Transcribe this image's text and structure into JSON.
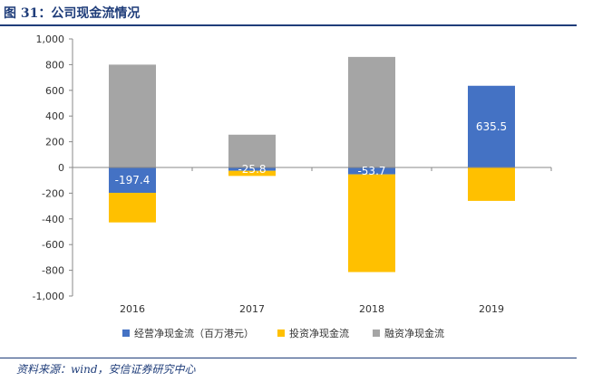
{
  "figure": {
    "title": "图 31：公司现金流情况",
    "source": "资料来源：wind，安信证券研究中心"
  },
  "chart_data": {
    "type": "bar",
    "stacked": true,
    "categories": [
      "2016",
      "2017",
      "2018",
      "2019"
    ],
    "series": [
      {
        "name": "经营净现金流（百万港元）",
        "color": "#4472c4",
        "values": [
          -197.4,
          -25.8,
          -53.7,
          635.5
        ],
        "labels": [
          "-197.4",
          "-25.8",
          "-53.7",
          "635.5"
        ]
      },
      {
        "name": "投资净现金流",
        "color": "#ffc000",
        "values": [
          -230,
          -40,
          -760,
          -260
        ]
      },
      {
        "name": "融资净现金流",
        "color": "#a5a5a5",
        "values": [
          800,
          255,
          860,
          0
        ]
      }
    ],
    "ylim": [
      -1000,
      1000
    ],
    "yticks": [
      1000,
      800,
      600,
      400,
      200,
      0,
      -200,
      -400,
      -600,
      -800,
      -1000
    ],
    "ytick_labels": [
      "1,000",
      "800",
      "600",
      "400",
      "200",
      "0",
      "-200",
      "-400",
      "-600",
      "-800",
      "-1,000"
    ],
    "legend_position": "bottom"
  }
}
